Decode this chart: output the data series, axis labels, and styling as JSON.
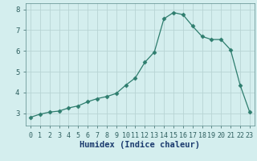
{
  "x": [
    0,
    1,
    2,
    3,
    4,
    5,
    6,
    7,
    8,
    9,
    10,
    11,
    12,
    13,
    14,
    15,
    16,
    17,
    18,
    19,
    20,
    21,
    22,
    23
  ],
  "y": [
    2.8,
    2.95,
    3.05,
    3.1,
    3.25,
    3.35,
    3.55,
    3.7,
    3.8,
    3.95,
    4.35,
    4.7,
    5.45,
    5.95,
    7.55,
    7.85,
    7.75,
    7.2,
    6.7,
    6.55,
    6.55,
    6.05,
    4.35,
    3.05
  ],
  "line_color": "#2e7d6e",
  "marker": "D",
  "marker_size": 2.5,
  "bg_color": "#d4eeee",
  "grid_color": "#b8d4d4",
  "xlabel": "Humidex (Indice chaleur)",
  "xlim": [
    -0.5,
    23.5
  ],
  "ylim": [
    2.4,
    8.3
  ],
  "yticks": [
    3,
    4,
    5,
    6,
    7,
    8
  ],
  "xticks": [
    0,
    1,
    2,
    3,
    4,
    5,
    6,
    7,
    8,
    9,
    10,
    11,
    12,
    13,
    14,
    15,
    16,
    17,
    18,
    19,
    20,
    21,
    22,
    23
  ],
  "xlabel_color": "#1a3a6e",
  "tick_color": "#2e5f5f",
  "tick_fontsize": 6.0,
  "xlabel_fontsize": 7.5
}
